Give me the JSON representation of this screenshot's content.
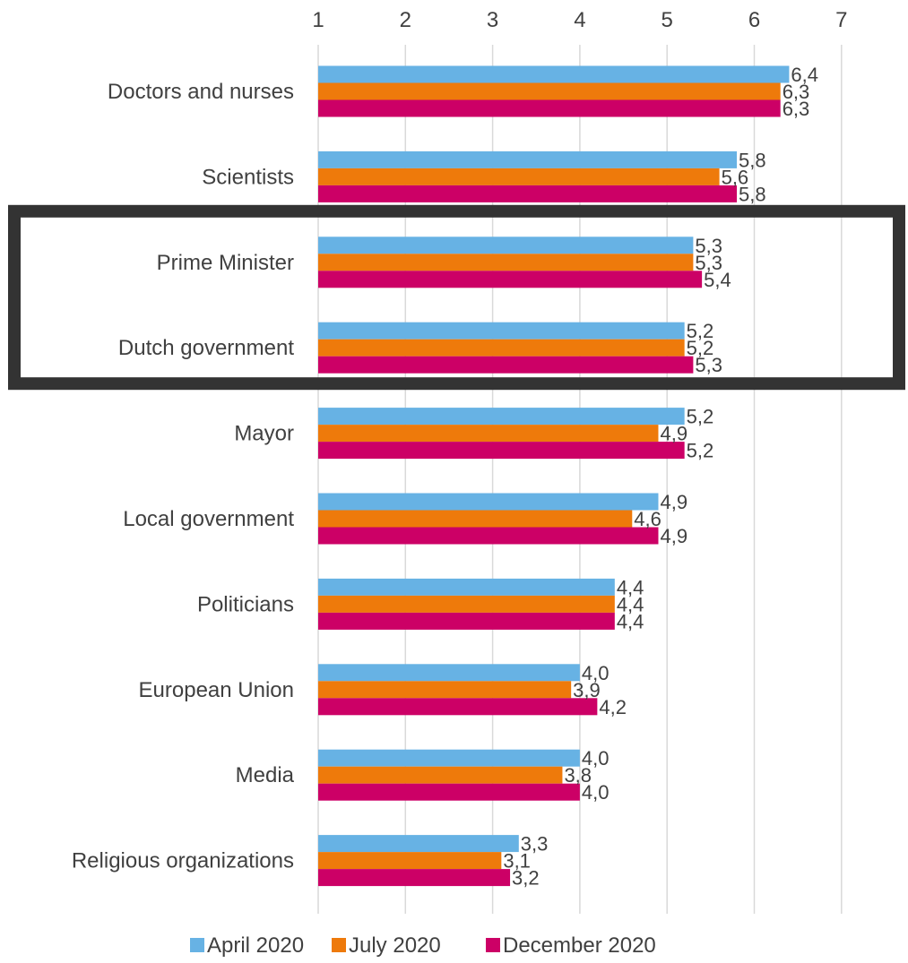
{
  "chart_data": {
    "type": "bar",
    "orientation": "horizontal",
    "title": "",
    "xlabel": "",
    "ylabel": "",
    "xlim": [
      1,
      7
    ],
    "x_ticks": [
      "1",
      "2",
      "3",
      "4",
      "5",
      "6",
      "7"
    ],
    "grid": true,
    "legend_position": "bottom",
    "categories": [
      "Doctors and nurses",
      "Scientists",
      "Prime Minister",
      "Dutch government",
      "Mayor",
      "Local government",
      "Politicians",
      "European Union",
      "Media",
      "Religious organizations"
    ],
    "series": [
      {
        "name": "April 2020",
        "color": "#67b2e4",
        "values": [
          6.4,
          5.8,
          5.3,
          5.2,
          5.2,
          4.9,
          4.4,
          4.0,
          4.0,
          3.3
        ],
        "labels": [
          "6,4",
          "5,8",
          "5,3",
          "5,2",
          "5,2",
          "4,9",
          "4,4",
          "4,0",
          "4,0",
          "3,3"
        ]
      },
      {
        "name": "July 2020",
        "color": "#ee7a0b",
        "values": [
          6.3,
          5.6,
          5.3,
          5.2,
          4.9,
          4.6,
          4.4,
          3.9,
          3.8,
          3.1
        ],
        "labels": [
          "6,3",
          "5,6",
          "5,3",
          "5,2",
          "4,9",
          "4,6",
          "4,4",
          "3,9",
          "3,8",
          "3,1"
        ]
      },
      {
        "name": "December 2020",
        "color": "#cc0066",
        "values": [
          6.3,
          5.8,
          5.4,
          5.3,
          5.2,
          4.9,
          4.4,
          4.2,
          4.0,
          3.2
        ],
        "labels": [
          "6,3",
          "5,8",
          "5,4",
          "5,3",
          "5,2",
          "4,9",
          "4,4",
          "4,2",
          "4,0",
          "3,2"
        ]
      }
    ],
    "highlight": {
      "categories": [
        "Prime Minister",
        "Dutch government"
      ],
      "style": "dark frame",
      "color": "#333333"
    }
  }
}
